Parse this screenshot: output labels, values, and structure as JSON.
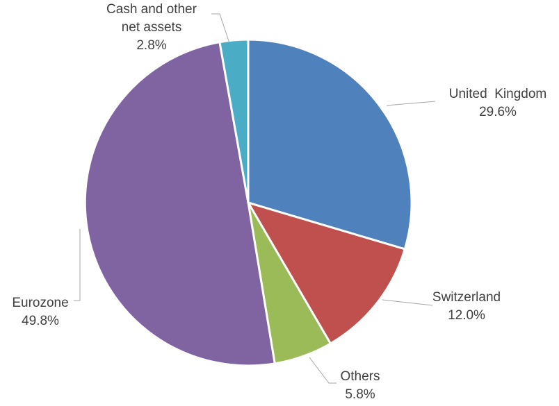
{
  "chart_data": {
    "type": "pie",
    "title": "",
    "slices": [
      {
        "name_lines": [
          "United  Kingdom"
        ],
        "label": "United  Kingdom",
        "value_text": "29.6%",
        "value": 29.6,
        "color": "#4f81bd"
      },
      {
        "name_lines": [
          "Switzerland"
        ],
        "label": "Switzerland",
        "value_text": "12.0%",
        "value": 12.0,
        "color": "#c0504d"
      },
      {
        "name_lines": [
          "Others"
        ],
        "label": "Others",
        "value_text": "5.8%",
        "value": 5.8,
        "color": "#9bbb59"
      },
      {
        "name_lines": [
          "Eurozone"
        ],
        "label": "Eurozone",
        "value_text": "49.8%",
        "value": 49.8,
        "color": "#8064a2"
      },
      {
        "name_lines": [
          "Cash and other",
          "net assets"
        ],
        "label": "Cash and other net assets",
        "value_text": "2.8%",
        "value": 2.8,
        "color": "#4bacc6"
      }
    ],
    "start_angle_deg": 0,
    "direction": "clockwise",
    "legend": "none",
    "data_labels": "outside with leader lines"
  }
}
